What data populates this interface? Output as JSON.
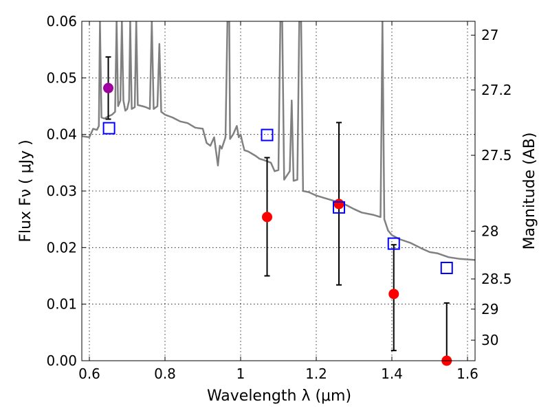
{
  "chart_data": {
    "type": "scatter",
    "xlabel": "Wavelength  λ (μm)",
    "ylabel": "Flux  Fν  ( μJy )",
    "y2label": "Magnitude (AB)",
    "xlim": [
      0.58,
      1.62
    ],
    "ylim": [
      0.0,
      0.06
    ],
    "grid": true,
    "x_ticks": [
      0.6,
      0.8,
      1.0,
      1.2,
      1.4,
      1.6
    ],
    "x_tick_labels": [
      "0.6",
      "0.8",
      "1",
      "1.2",
      "1.4",
      "1.6"
    ],
    "y_ticks": [
      0.0,
      0.01,
      0.02,
      0.03,
      0.04,
      0.05,
      0.06
    ],
    "y_tick_labels": [
      "0.00",
      "0.01",
      "0.02",
      "0.03",
      "0.04",
      "0.05",
      "0.06"
    ],
    "mag_ticks": [
      27,
      27.2,
      27.5,
      28,
      28.5,
      29,
      30
    ],
    "mag_tick_labels": [
      "27",
      "27.2",
      "27.5",
      "28",
      "28.5",
      "29",
      "30"
    ],
    "colors": {
      "model": "#808080",
      "observed": "#ff0000",
      "observed_first": "#a000a0",
      "synthetic": "#0000ff",
      "errorbar": "#000000"
    },
    "series": [
      {
        "kind": "line",
        "points": [
          [
            0.58,
            0.0397
          ],
          [
            0.6,
            0.0395
          ],
          [
            0.61,
            0.041
          ],
          [
            0.62,
            0.0408
          ],
          [
            0.625,
            0.0415
          ],
          [
            0.628,
            0.06
          ],
          [
            0.632,
            0.043
          ],
          [
            0.64,
            0.0428
          ],
          [
            0.65,
            0.0432
          ],
          [
            0.66,
            0.0435
          ],
          [
            0.668,
            0.044
          ],
          [
            0.672,
            0.06
          ],
          [
            0.676,
            0.045
          ],
          [
            0.682,
            0.046
          ],
          [
            0.686,
            0.06
          ],
          [
            0.69,
            0.046
          ],
          [
            0.695,
            0.0442
          ],
          [
            0.7,
            0.0445
          ],
          [
            0.705,
            0.046
          ],
          [
            0.708,
            0.06
          ],
          [
            0.712,
            0.0445
          ],
          [
            0.72,
            0.0448
          ],
          [
            0.724,
            0.06
          ],
          [
            0.728,
            0.0452
          ],
          [
            0.74,
            0.045
          ],
          [
            0.75,
            0.0448
          ],
          [
            0.76,
            0.0445
          ],
          [
            0.765,
            0.06
          ],
          [
            0.77,
            0.0445
          ],
          [
            0.78,
            0.045
          ],
          [
            0.785,
            0.056
          ],
          [
            0.79,
            0.044
          ],
          [
            0.8,
            0.0435
          ],
          [
            0.82,
            0.043
          ],
          [
            0.84,
            0.0423
          ],
          [
            0.86,
            0.042
          ],
          [
            0.88,
            0.0412
          ],
          [
            0.9,
            0.041
          ],
          [
            0.91,
            0.0385
          ],
          [
            0.92,
            0.038
          ],
          [
            0.93,
            0.0395
          ],
          [
            0.94,
            0.0345
          ],
          [
            0.945,
            0.038
          ],
          [
            0.95,
            0.0375
          ],
          [
            0.96,
            0.0395
          ],
          [
            0.965,
            0.06
          ],
          [
            0.97,
            0.06
          ],
          [
            0.972,
            0.0392
          ],
          [
            0.98,
            0.04
          ],
          [
            0.99,
            0.0415
          ],
          [
            0.995,
            0.0395
          ],
          [
            1.0,
            0.04
          ],
          [
            1.005,
            0.0385
          ],
          [
            1.01,
            0.0372
          ],
          [
            1.02,
            0.037
          ],
          [
            1.04,
            0.0362
          ],
          [
            1.05,
            0.0357
          ],
          [
            1.06,
            0.0355
          ],
          [
            1.08,
            0.035
          ],
          [
            1.09,
            0.0335
          ],
          [
            1.1,
            0.0337
          ],
          [
            1.105,
            0.06
          ],
          [
            1.11,
            0.06
          ],
          [
            1.115,
            0.032
          ],
          [
            1.12,
            0.0325
          ],
          [
            1.13,
            0.0335
          ],
          [
            1.135,
            0.046
          ],
          [
            1.14,
            0.0318
          ],
          [
            1.15,
            0.032
          ],
          [
            1.155,
            0.06
          ],
          [
            1.16,
            0.06
          ],
          [
            1.165,
            0.03
          ],
          [
            1.18,
            0.0298
          ],
          [
            1.2,
            0.0292
          ],
          [
            1.22,
            0.0288
          ],
          [
            1.24,
            0.0284
          ],
          [
            1.26,
            0.028
          ],
          [
            1.28,
            0.0275
          ],
          [
            1.3,
            0.0268
          ],
          [
            1.32,
            0.0262
          ],
          [
            1.35,
            0.0258
          ],
          [
            1.37,
            0.0254
          ],
          [
            1.375,
            0.06
          ],
          [
            1.38,
            0.025
          ],
          [
            1.39,
            0.023
          ],
          [
            1.4,
            0.0222
          ],
          [
            1.42,
            0.0215
          ],
          [
            1.45,
            0.0208
          ],
          [
            1.48,
            0.0198
          ],
          [
            1.5,
            0.0192
          ],
          [
            1.52,
            0.019
          ],
          [
            1.55,
            0.0183
          ],
          [
            1.58,
            0.018
          ],
          [
            1.62,
            0.0178
          ]
        ]
      },
      {
        "kind": "points",
        "marker": "circle",
        "points": [
          {
            "x": 0.65,
            "y": 0.0482,
            "yerr": [
              0.0427,
              0.0537
            ]
          },
          {
            "x": 1.07,
            "y": 0.0254,
            "yerr": [
              0.015,
              0.0359
            ]
          },
          {
            "x": 1.26,
            "y": 0.0277,
            "yerr": [
              0.0134,
              0.0421
            ]
          },
          {
            "x": 1.405,
            "y": 0.0118,
            "yerr": [
              0.0018,
              0.0205
            ]
          },
          {
            "x": 1.545,
            "y": 0.0,
            "yerr": [
              0.0,
              0.0102
            ]
          }
        ]
      },
      {
        "kind": "points",
        "marker": "open-square",
        "points": [
          {
            "x": 0.652,
            "y": 0.0411
          },
          {
            "x": 1.07,
            "y": 0.0399
          },
          {
            "x": 1.26,
            "y": 0.0271
          },
          {
            "x": 1.405,
            "y": 0.0207
          },
          {
            "x": 1.545,
            "y": 0.0164
          }
        ]
      }
    ]
  }
}
